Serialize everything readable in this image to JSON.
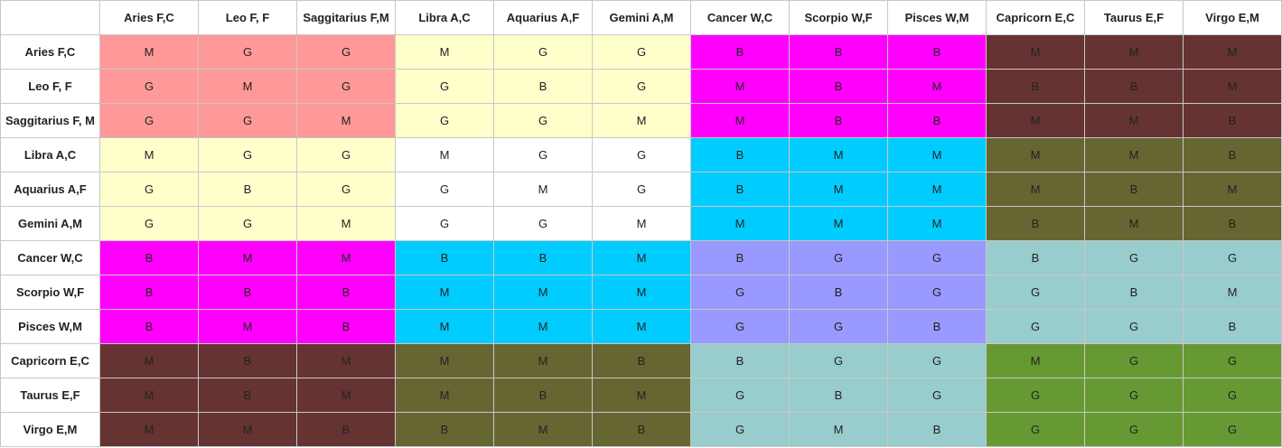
{
  "corner": "",
  "columns": [
    "Aries F,C",
    "Leo F, F",
    "Saggitarius F,M",
    "Libra A,C",
    "Aquarius A,F",
    "Gemini A,M",
    "Cancer W,C",
    "Scorpio W,F",
    "Pisces W,M",
    "Capricorn E,C",
    "Taurus E,F",
    "Virgo E,M"
  ],
  "rows": [
    {
      "label": "Aries F,C",
      "cells": [
        "M",
        "G",
        "G",
        "M",
        "G",
        "G",
        "B",
        "B",
        "B",
        "M",
        "M",
        "M"
      ]
    },
    {
      "label": "Leo F, F",
      "cells": [
        "G",
        "M",
        "G",
        "G",
        "B",
        "G",
        "M",
        "B",
        "M",
        "B",
        "B",
        "M"
      ]
    },
    {
      "label": "Saggitarius F, M",
      "cells": [
        "G",
        "G",
        "M",
        "G",
        "G",
        "M",
        "M",
        "B",
        "B",
        "M",
        "M",
        "B"
      ]
    },
    {
      "label": "Libra A,C",
      "cells": [
        "M",
        "G",
        "G",
        "M",
        "G",
        "G",
        "B",
        "M",
        "M",
        "M",
        "M",
        "B"
      ]
    },
    {
      "label": "Aquarius A,F",
      "cells": [
        "G",
        "B",
        "G",
        "G",
        "M",
        "G",
        "B",
        "M",
        "M",
        "M",
        "B",
        "M"
      ]
    },
    {
      "label": "Gemini A,M",
      "cells": [
        "G",
        "G",
        "M",
        "G",
        "G",
        "M",
        "M",
        "M",
        "M",
        "B",
        "M",
        "B"
      ]
    },
    {
      "label": "Cancer W,C",
      "cells": [
        "B",
        "M",
        "M",
        "B",
        "B",
        "M",
        "B",
        "G",
        "G",
        "B",
        "G",
        "G"
      ]
    },
    {
      "label": "Scorpio W,F",
      "cells": [
        "B",
        "B",
        "B",
        "M",
        "M",
        "M",
        "G",
        "B",
        "G",
        "G",
        "B",
        "M"
      ]
    },
    {
      "label": "Pisces W,M",
      "cells": [
        "B",
        "M",
        "B",
        "M",
        "M",
        "M",
        "G",
        "G",
        "B",
        "G",
        "G",
        "B"
      ]
    },
    {
      "label": "Capricorn E,C",
      "cells": [
        "M",
        "B",
        "M",
        "M",
        "M",
        "B",
        "B",
        "G",
        "G",
        "M",
        "G",
        "G"
      ]
    },
    {
      "label": "Taurus E,F",
      "cells": [
        "M",
        "B",
        "M",
        "M",
        "B",
        "M",
        "G",
        "B",
        "G",
        "G",
        "G",
        "G"
      ]
    },
    {
      "label": "Virgo E,M",
      "cells": [
        "M",
        "M",
        "B",
        "B",
        "M",
        "B",
        "G",
        "M",
        "B",
        "G",
        "G",
        "G"
      ]
    }
  ],
  "element_block_colors": {
    "fire_fire": "#ff9999",
    "fire_air": "#ffffcc",
    "fire_water": "#ff00ff",
    "fire_earth": "#663333",
    "air_air": "#ffffff",
    "air_water": "#00ccff",
    "air_earth": "#666633",
    "water_water": "#9999ff",
    "water_earth": "#99cccc",
    "earth_earth": "#669933"
  },
  "block_color_grid": [
    [
      "fire_fire",
      "fire_air",
      "fire_water",
      "fire_earth"
    ],
    [
      "fire_air",
      "air_air",
      "air_water",
      "air_earth"
    ],
    [
      "fire_water",
      "air_water",
      "water_water",
      "water_earth"
    ],
    [
      "fire_earth",
      "air_earth",
      "water_earth",
      "earth_earth"
    ]
  ]
}
